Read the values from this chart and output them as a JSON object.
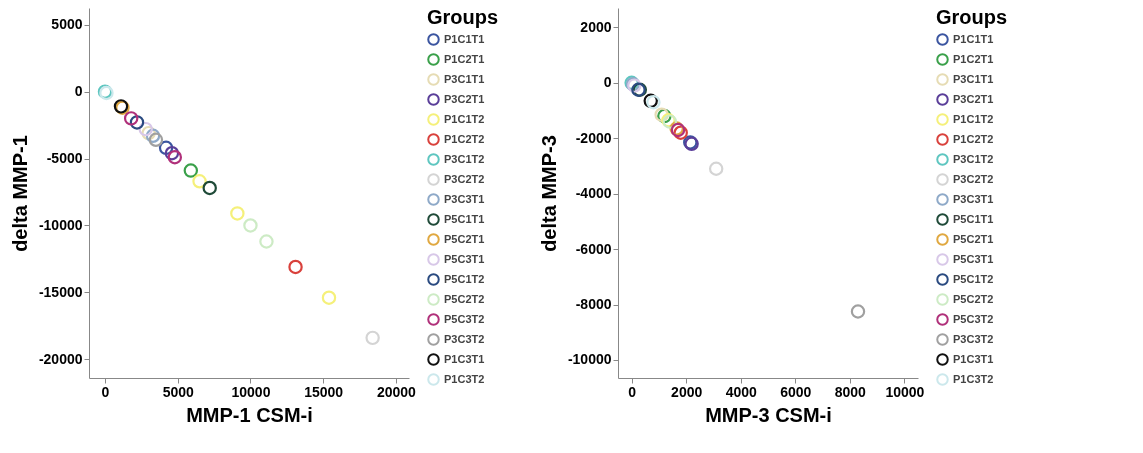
{
  "chart_data": [
    {
      "type": "scatter",
      "xlabel": "MMP-1 CSM-i",
      "ylabel": "delta MMP-1",
      "legend_title": "Groups",
      "legend": "right",
      "marker": "circle",
      "grid": false,
      "xlim": [
        -1100,
        20900
      ],
      "ylim": [
        -21400,
        6250
      ],
      "xticks": [
        0,
        5000,
        10000,
        15000,
        20000
      ],
      "yticks": [
        -20000,
        -15000,
        -10000,
        -5000,
        0,
        5000
      ],
      "series": [
        {
          "name": "P1C1T1",
          "color": "#3b55a0",
          "x": [
            4200
          ],
          "values": [
            -4200
          ]
        },
        {
          "name": "P1C2T1",
          "color": "#3aa04a",
          "x": [
            5900
          ],
          "values": [
            -5900
          ]
        },
        {
          "name": "P3C1T1",
          "color": "#e6dcb4",
          "x": [
            3000
          ],
          "values": [
            -3100
          ]
        },
        {
          "name": "P3C2T1",
          "color": "#5a3e99",
          "x": [
            4600
          ],
          "values": [
            -4600
          ]
        },
        {
          "name": "P1C1T2",
          "color": "#f5f07a",
          "x": [
            6500,
            9100,
            15400
          ],
          "values": [
            -6700,
            -9100,
            -15400
          ]
        },
        {
          "name": "P1C2T2",
          "color": "#d9413c",
          "x": [
            13100
          ],
          "values": [
            -13100
          ]
        },
        {
          "name": "P3C1T2",
          "color": "#5ec6c0",
          "x": [
            0
          ],
          "values": [
            0
          ]
        },
        {
          "name": "P3C2T2",
          "color": "#d4d4d4",
          "x": [
            18400
          ],
          "values": [
            -18400
          ]
        },
        {
          "name": "P3C3T1",
          "color": "#8ea9c8",
          "x": [
            3300
          ],
          "values": [
            -3300
          ]
        },
        {
          "name": "P5C1T1",
          "color": "#1f4a38",
          "x": [
            7200
          ],
          "values": [
            -7200
          ]
        },
        {
          "name": "P5C2T1",
          "color": "#e0a840",
          "x": [
            1200
          ],
          "values": [
            -1200
          ]
        },
        {
          "name": "P5C3T1",
          "color": "#d8c8e8",
          "x": [
            2800
          ],
          "values": [
            -2800
          ]
        },
        {
          "name": "P5C1T2",
          "color": "#2a4a80",
          "x": [
            2200
          ],
          "values": [
            -2300
          ]
        },
        {
          "name": "P5C2T2",
          "color": "#cdebc5",
          "x": [
            10000,
            11100
          ],
          "values": [
            -10000,
            -11200
          ]
        },
        {
          "name": "P5C3T2",
          "color": "#b0307a",
          "x": [
            1800,
            4800
          ],
          "values": [
            -2000,
            -4900
          ]
        },
        {
          "name": "P3C3T2",
          "color": "#a0a0a0",
          "x": [
            3500
          ],
          "values": [
            -3600
          ]
        },
        {
          "name": "P1C3T1",
          "color": "#101010",
          "x": [
            1100
          ],
          "values": [
            -1100
          ]
        },
        {
          "name": "P1C3T2",
          "color": "#cce8ec",
          "x": [
            100
          ],
          "values": [
            -100
          ]
        }
      ]
    },
    {
      "type": "scatter",
      "xlabel": "MMP-3 CSM-i",
      "ylabel": "delta MMP-3",
      "legend_title": "Groups",
      "legend": "right",
      "marker": "circle",
      "grid": false,
      "xlim": [
        -500,
        10500
      ],
      "ylim": [
        -10650,
        2700
      ],
      "xticks": [
        0,
        2000,
        4000,
        6000,
        8000,
        10000
      ],
      "yticks": [
        -10000,
        -8000,
        -6000,
        -4000,
        -2000,
        0,
        2000
      ],
      "series": [
        {
          "name": "P1C1T1",
          "color": "#3b55a0",
          "x": [
            2150
          ],
          "values": [
            -2150
          ]
        },
        {
          "name": "P1C2T1",
          "color": "#3aa04a",
          "x": [
            1200
          ],
          "values": [
            -1200
          ]
        },
        {
          "name": "P3C1T1",
          "color": "#e6dcb4",
          "x": [
            1100
          ],
          "values": [
            -1150
          ]
        },
        {
          "name": "P3C2T1",
          "color": "#5a3e99",
          "x": [
            2200
          ],
          "values": [
            -2200
          ]
        },
        {
          "name": "P1C1T2",
          "color": "#f5f07a",
          "x": [
            1350
          ],
          "values": [
            -1350
          ]
        },
        {
          "name": "P1C2T2",
          "color": "#d9413c",
          "x": [
            1800
          ],
          "values": [
            -1800
          ]
        },
        {
          "name": "P3C1T2",
          "color": "#5ec6c0",
          "x": [
            0
          ],
          "values": [
            0
          ]
        },
        {
          "name": "P3C2T2",
          "color": "#d4d4d4",
          "x": [
            3100
          ],
          "values": [
            -3100
          ]
        },
        {
          "name": "P3C3T1",
          "color": "#8ea9c8",
          "x": [
            50
          ],
          "values": [
            -50
          ]
        },
        {
          "name": "P5C1T1",
          "color": "#1f4a38",
          "x": [
            300
          ],
          "values": [
            -250
          ]
        },
        {
          "name": "P5C2T1",
          "color": "#e0a840",
          "x": [
            1650
          ],
          "values": [
            -1650
          ]
        },
        {
          "name": "P5C3T1",
          "color": "#d8c8e8",
          "x": [
            100
          ],
          "values": [
            -100
          ]
        },
        {
          "name": "P5C1T2",
          "color": "#2a4a80",
          "x": [
            250
          ],
          "values": [
            -250
          ]
        },
        {
          "name": "P5C2T2",
          "color": "#cdebc5",
          "x": [
            1400
          ],
          "values": [
            -1400
          ]
        },
        {
          "name": "P5C3T2",
          "color": "#b0307a",
          "x": [
            1700
          ],
          "values": [
            -1700
          ]
        },
        {
          "name": "P3C3T2",
          "color": "#a0a0a0",
          "x": [
            8300
          ],
          "values": [
            -8250
          ]
        },
        {
          "name": "P1C3T1",
          "color": "#101010",
          "x": [
            700
          ],
          "values": [
            -650
          ]
        },
        {
          "name": "P1C3T2",
          "color": "#cce8ec",
          "x": [
            800
          ],
          "values": [
            -700
          ]
        }
      ]
    }
  ]
}
